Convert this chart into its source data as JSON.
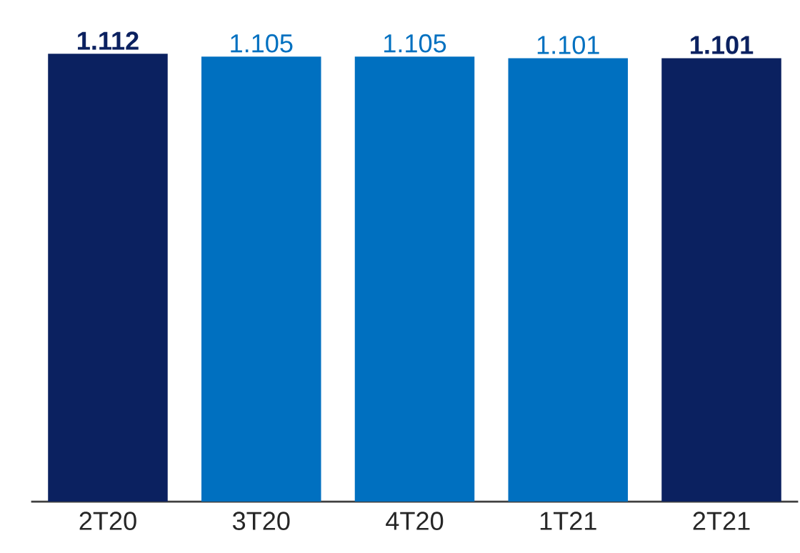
{
  "chart_data": {
    "type": "bar",
    "categories": [
      "2T20",
      "3T20",
      "4T20",
      "1T21",
      "2T21"
    ],
    "values": [
      1.112,
      1.105,
      1.105,
      1.101,
      1.101
    ],
    "value_labels": [
      "1.112",
      "1.105",
      "1.105",
      "1.101",
      "1.101"
    ],
    "colors": [
      "#0b2160",
      "#0070c0",
      "#0070c0",
      "#0070c0",
      "#0b2160"
    ]
  }
}
